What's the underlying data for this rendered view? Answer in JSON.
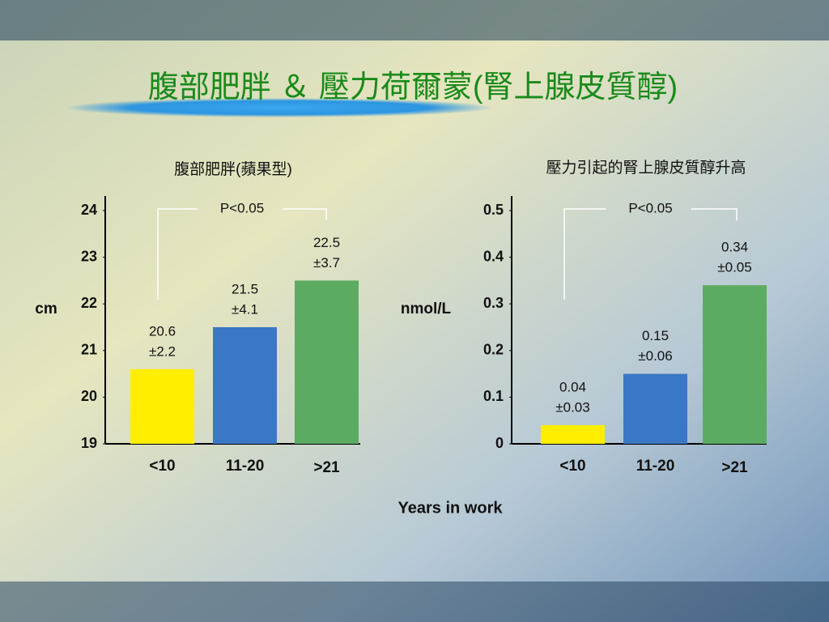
{
  "title": "腹部肥胖 ＆ 壓力荷爾蒙(腎上腺皮質醇)",
  "shared_xlabel": "Years in work",
  "chart_data": [
    {
      "type": "bar",
      "title": "腹部肥胖(蘋果型)",
      "ylabel": "cm",
      "categories": [
        "<10",
        "11-20",
        ">21"
      ],
      "values": [
        20.6,
        21.5,
        22.5
      ],
      "sd_labels": [
        "±2.2",
        "±4.1",
        "±3.7"
      ],
      "colors": [
        "#ffee00",
        "#3a78c6",
        "#5cab62"
      ],
      "ylim": [
        19,
        24
      ],
      "yticks": [
        19,
        20,
        21,
        22,
        23,
        24
      ],
      "annotation": "P<0.05"
    },
    {
      "type": "bar",
      "title": "壓力引起的腎上腺皮質醇升高",
      "ylabel": "nmol/L",
      "categories": [
        "<10",
        "11-20",
        ">21"
      ],
      "values": [
        0.04,
        0.15,
        0.34
      ],
      "sd_labels": [
        "±0.03",
        "±0.06",
        "±0.05"
      ],
      "colors": [
        "#ffee00",
        "#3a78c6",
        "#5cab62"
      ],
      "ylim": [
        0,
        0.5
      ],
      "yticks": [
        0,
        0.1,
        0.2,
        0.3,
        0.4,
        0.5
      ],
      "annotation": "P<0.05"
    }
  ]
}
